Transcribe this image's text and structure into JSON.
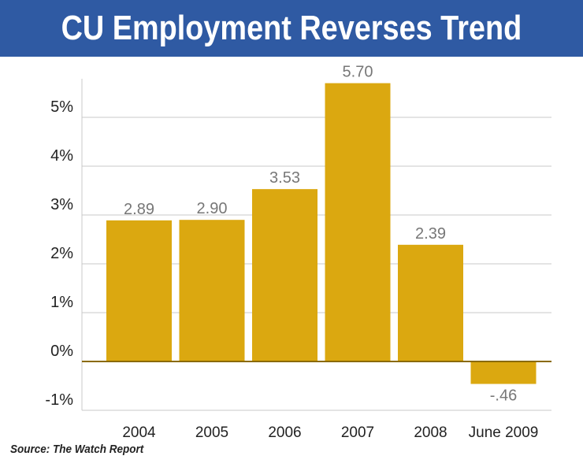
{
  "title": "CU Employment Reverses Trend",
  "source": "Source: The Watch Report",
  "colors": {
    "header_bg": "#2f5aa3",
    "bar": "#dba810",
    "grid": "#c9c9c9",
    "axis_text": "#222222",
    "label_text": "#777777"
  },
  "chart_data": {
    "type": "bar",
    "categories": [
      "2004",
      "2005",
      "2006",
      "2007",
      "2008",
      "June 2009"
    ],
    "values": [
      2.89,
      2.9,
      3.53,
      5.7,
      2.39,
      -0.46
    ],
    "data_labels": [
      "2.89",
      "2.90",
      "3.53",
      "5.70",
      "2.39",
      "-.46"
    ],
    "y_ticks": [
      -1,
      0,
      1,
      2,
      3,
      4,
      5
    ],
    "y_tick_labels": [
      "-1%",
      "0%",
      "1%",
      "2%",
      "3%",
      "4%",
      "5%"
    ],
    "ylim": [
      -1,
      6
    ],
    "grid": true,
    "title": "CU Employment Reverses Trend",
    "xlabel": "",
    "ylabel": ""
  }
}
